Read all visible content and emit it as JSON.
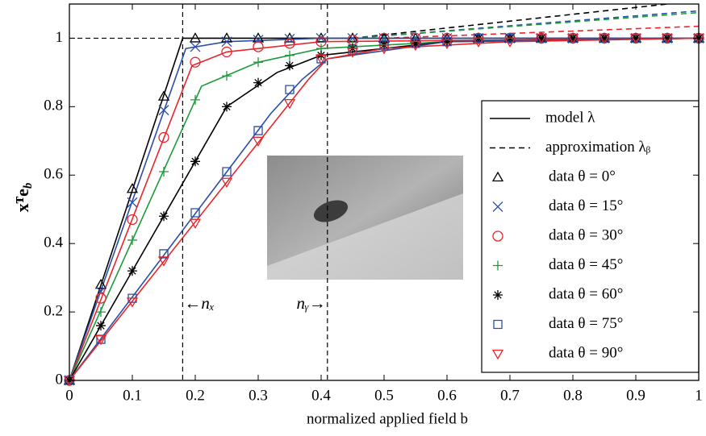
{
  "chart_data": {
    "type": "line",
    "x_label": "normalized applied field b",
    "y_label": "xᵀe",
    "y_label_subscript": "b",
    "xlim": [
      0,
      1
    ],
    "ylim": [
      0,
      1.1
    ],
    "xticks": [
      0,
      0.1,
      0.2,
      0.3,
      0.4,
      0.5,
      0.6,
      0.7,
      0.8,
      0.9,
      1
    ],
    "yticks": [
      0,
      0.2,
      0.4,
      0.6,
      0.8,
      1
    ],
    "grid": false,
    "legend": "right",
    "x": [
      0,
      0.05,
      0.1,
      0.15,
      0.2,
      0.25,
      0.3,
      0.35,
      0.4,
      0.45,
      0.5,
      0.55,
      0.6,
      0.65,
      0.7,
      0.75,
      0.8,
      0.85,
      0.9,
      0.95,
      1
    ],
    "model": {
      "name": "model λ",
      "color": "#000000",
      "lines": [
        {
          "color": "#000000",
          "x": [
            0,
            0.18,
            1
          ],
          "values": [
            0,
            1,
            1
          ]
        },
        {
          "color": "#2a4fa8",
          "x": [
            0,
            0.185,
            0.25,
            0.4,
            1
          ],
          "values": [
            0,
            0.97,
            0.99,
            1,
            1
          ]
        },
        {
          "color": "#e8262b",
          "x": [
            0,
            0.195,
            0.25,
            0.4,
            1
          ],
          "values": [
            0,
            0.92,
            0.96,
            0.99,
            1
          ]
        },
        {
          "color": "#1e9a3c",
          "x": [
            0,
            0.21,
            0.3,
            0.4,
            0.6,
            1
          ],
          "values": [
            0,
            0.86,
            0.93,
            0.97,
            0.99,
            1
          ]
        },
        {
          "color": "#000000",
          "x": [
            0,
            0.25,
            0.33,
            0.4,
            0.6,
            1
          ],
          "values": [
            0,
            0.8,
            0.9,
            0.95,
            0.99,
            1
          ]
        },
        {
          "color": "#2a4fa8",
          "x": [
            0,
            0.32,
            0.37,
            0.41,
            0.6,
            1
          ],
          "values": [
            0,
            0.78,
            0.88,
            0.94,
            0.99,
            1
          ]
        },
        {
          "color": "#e8262b",
          "x": [
            0,
            0.38,
            0.41,
            0.5,
            0.7,
            1
          ],
          "values": [
            0,
            0.88,
            0.94,
            0.97,
            0.99,
            1
          ]
        }
      ]
    },
    "approximation": {
      "name": "approximation λᵦ",
      "color": "#000000",
      "lines": [
        {
          "color": "#000000",
          "x": [
            0.45,
            0.95
          ],
          "values": [
            1,
            1.1
          ]
        },
        {
          "color": "#2a4fa8",
          "x": [
            0.45,
            1
          ],
          "values": [
            1,
            1.08
          ]
        },
        {
          "color": "#1e9a3c",
          "x": [
            0.45,
            1
          ],
          "values": [
            1,
            1.075
          ]
        },
        {
          "color": "#e8262b",
          "x": [
            0.5,
            1
          ],
          "values": [
            1,
            1.035
          ]
        }
      ]
    },
    "reference_lines": {
      "hline": 1,
      "vlines": [
        {
          "value": 0.18,
          "label": "←nₓ"
        },
        {
          "value": 0.41,
          "label": "nᵧ→"
        }
      ]
    },
    "series": [
      {
        "name": "data θ = 0°",
        "color": "#000000",
        "marker": "triangle",
        "values": [
          0,
          0.28,
          0.56,
          0.83,
          1,
          1,
          1,
          1,
          1,
          1,
          1,
          1,
          1,
          1,
          1,
          1,
          1,
          1,
          1,
          1,
          1
        ]
      },
      {
        "name": "data θ = 15°",
        "color": "#2a4fa8",
        "marker": "x",
        "values": [
          0,
          0.26,
          0.52,
          0.79,
          0.975,
          0.99,
          0.995,
          0.998,
          1,
          1,
          1,
          1,
          1,
          1,
          1,
          1,
          1,
          1,
          1,
          1,
          1
        ]
      },
      {
        "name": "data θ = 30°",
        "color": "#e8262b",
        "marker": "circle",
        "values": [
          0,
          0.24,
          0.47,
          0.71,
          0.93,
          0.96,
          0.975,
          0.985,
          0.99,
          0.995,
          1,
          1,
          1,
          1,
          1,
          1,
          1,
          1,
          1,
          1,
          1
        ]
      },
      {
        "name": "data θ = 45°",
        "color": "#1e9a3c",
        "marker": "plus",
        "values": [
          0,
          0.2,
          0.41,
          0.61,
          0.82,
          0.89,
          0.93,
          0.95,
          0.97,
          0.98,
          0.985,
          0.99,
          0.99,
          1,
          1,
          1,
          1,
          1,
          1,
          1,
          1
        ]
      },
      {
        "name": "data θ = 60°",
        "color": "#000000",
        "marker": "asterisk",
        "values": [
          0,
          0.16,
          0.32,
          0.48,
          0.64,
          0.8,
          0.87,
          0.92,
          0.95,
          0.97,
          0.98,
          0.985,
          0.99,
          1,
          1,
          1,
          1,
          1,
          1,
          1,
          1
        ]
      },
      {
        "name": "data θ = 75°",
        "color": "#2a4fa8",
        "marker": "square",
        "values": [
          0,
          0.12,
          0.24,
          0.37,
          0.49,
          0.61,
          0.73,
          0.85,
          0.94,
          0.965,
          0.98,
          0.985,
          0.99,
          1,
          1,
          1,
          1,
          1,
          1,
          1,
          1
        ]
      },
      {
        "name": "data θ = 90°",
        "color": "#e8262b",
        "marker": "triangle-down",
        "values": [
          0,
          0.12,
          0.23,
          0.35,
          0.46,
          0.58,
          0.7,
          0.81,
          0.94,
          0.96,
          0.97,
          0.98,
          0.985,
          0.99,
          0.99,
          1,
          1,
          1,
          1,
          1,
          1
        ]
      }
    ]
  }
}
